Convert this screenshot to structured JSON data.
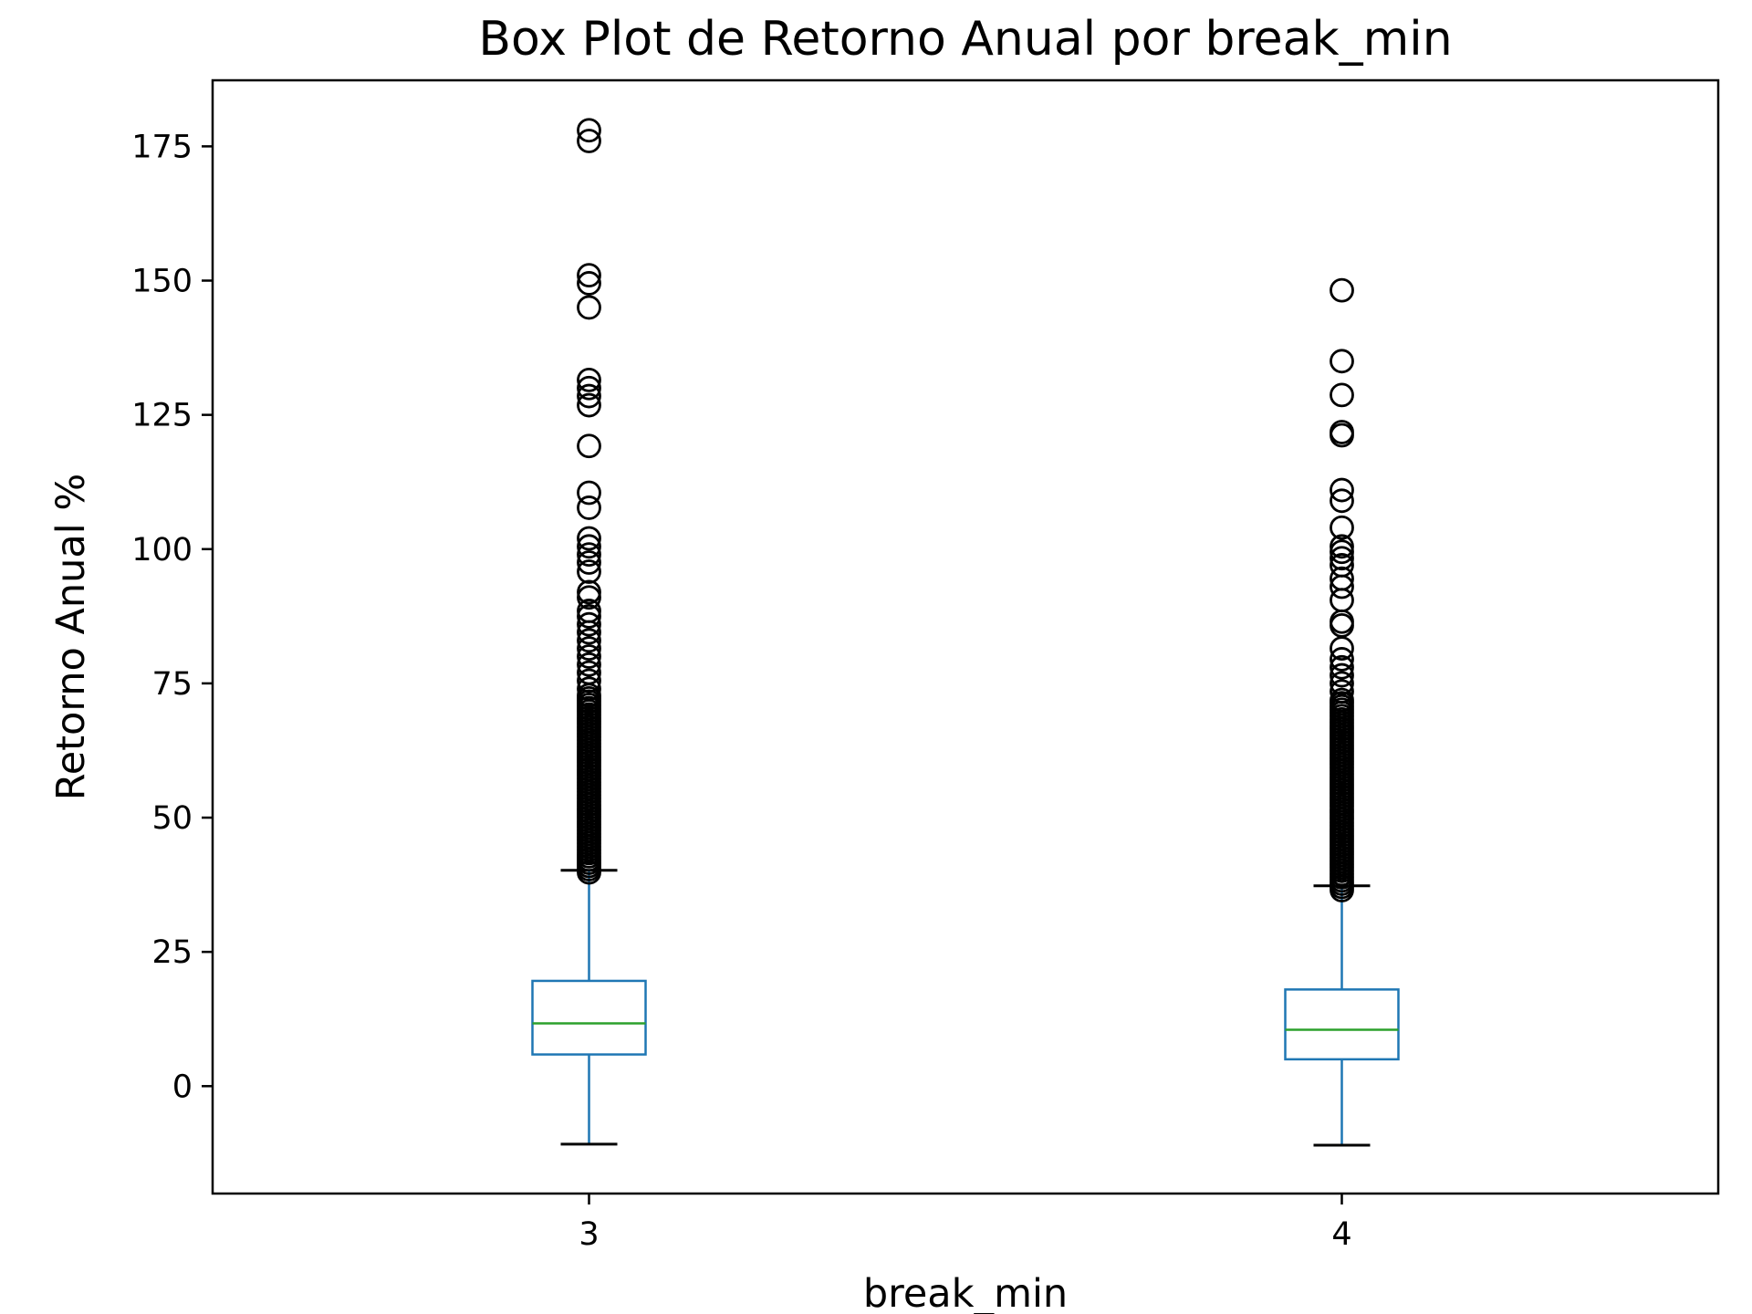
{
  "chart_data": {
    "type": "box",
    "title": "Box Plot de Retorno Anual por break_min",
    "xlabel": "break_min",
    "ylabel": "Retorno Anual %",
    "ylim": [
      -20.0,
      187.3
    ],
    "yticks": [
      0,
      25,
      50,
      75,
      100,
      125,
      150,
      175
    ],
    "ytick_labels": [
      "0",
      "25",
      "50",
      "75",
      "100",
      "125",
      "150",
      "175"
    ],
    "grid": false,
    "colors": {
      "box": "#1f77b4",
      "median": "#2ca02c",
      "caps": "#000000",
      "outliers": "#000000",
      "frame": "#000000"
    },
    "categories": [
      "3",
      "4"
    ],
    "series": [
      {
        "category": "3",
        "whisker_low": -10.8,
        "q1": 5.9,
        "median": 11.7,
        "q3": 19.6,
        "whisker_high": 40.2,
        "outliers_dense_range": [
          39.8,
          73.0
        ],
        "outliers": [
          178.0,
          176.0,
          151.0,
          149.5,
          145.0,
          131.5,
          130.0,
          128.5,
          126.8,
          119.2,
          110.5,
          107.7,
          102.0,
          100.5,
          99.0,
          97.5,
          95.8,
          92.0,
          91.0,
          88.5,
          87.5,
          86.0,
          84.5,
          83.0,
          81.5,
          80.0,
          78.5,
          77.0,
          75.5,
          74.0
        ]
      },
      {
        "category": "4",
        "whisker_low": -11.0,
        "q1": 5.0,
        "median": 10.5,
        "q3": 18.0,
        "whisker_high": 37.3,
        "outliers_dense_range": [
          36.5,
          72.0
        ],
        "outliers": [
          148.2,
          135.0,
          128.7,
          121.8,
          121.2,
          111.0,
          109.0,
          104.0,
          100.5,
          99.5,
          98.3,
          97.0,
          94.5,
          93.0,
          90.5,
          86.5,
          85.8,
          81.5,
          79.5,
          78.0,
          76.5,
          75.0,
          73.5
        ]
      }
    ]
  }
}
